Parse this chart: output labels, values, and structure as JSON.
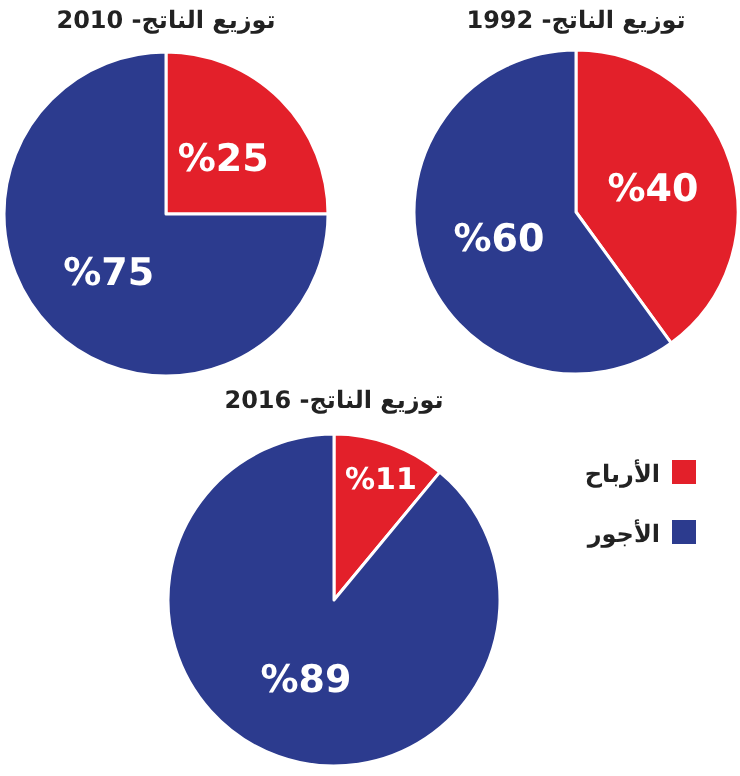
{
  "chart_data": [
    {
      "type": "pie",
      "title": "توزيع الناتج- 1992",
      "categories": [
        null,
        null
      ],
      "values": [
        40,
        60
      ],
      "colors": [
        "#e3202a",
        "#2c3b8e"
      ],
      "value_labels": [
        "%40",
        "%60"
      ]
    },
    {
      "type": "pie",
      "title": "توزيع الناتج- 2010",
      "categories": [
        null,
        null
      ],
      "values": [
        25,
        75
      ],
      "colors": [
        "#e3202a",
        "#2c3b8e"
      ],
      "value_labels": [
        "%25",
        "%75"
      ]
    },
    {
      "type": "pie",
      "title": "توزيع الناتج- 2016",
      "categories": [
        "الأرباح",
        "الأجور"
      ],
      "values": [
        11,
        89
      ],
      "colors": [
        "#e3202a",
        "#2c3b8e"
      ],
      "value_labels": [
        "%11",
        "%89"
      ],
      "legend": "right"
    }
  ]
}
